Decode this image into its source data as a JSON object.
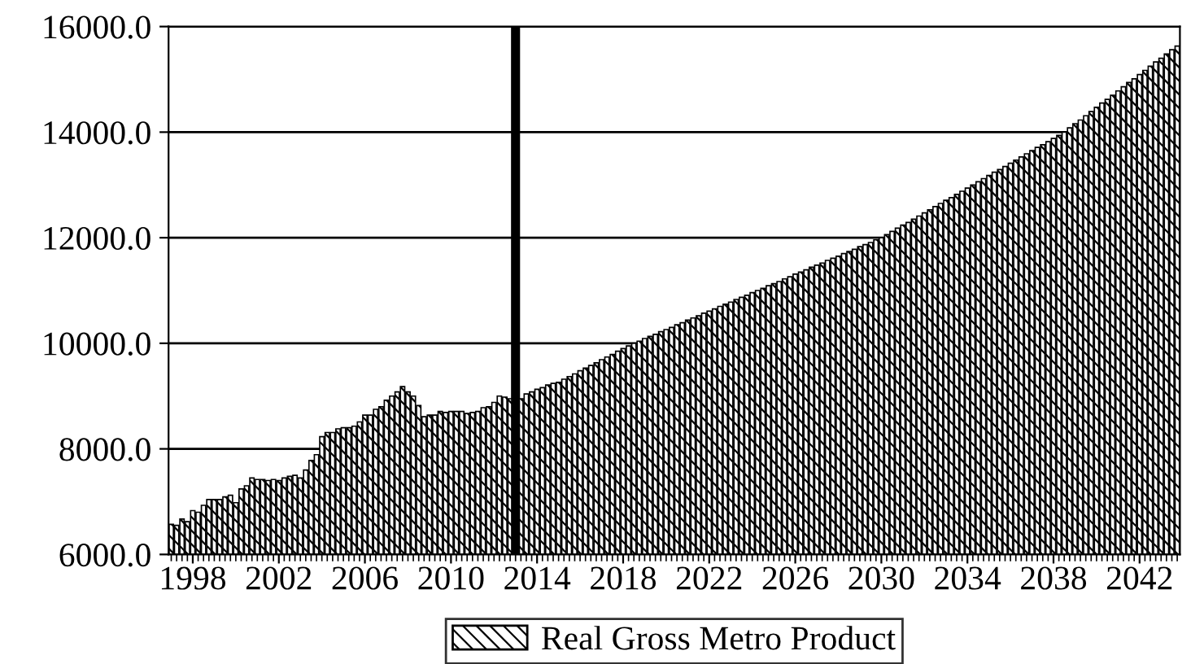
{
  "chart_data": {
    "type": "bar",
    "x": [
      1997,
      1997.25,
      1997.5,
      1997.75,
      1998,
      1998.25,
      1998.5,
      1998.75,
      1999,
      1999.25,
      1999.5,
      1999.75,
      2000,
      2000.25,
      2000.5,
      2000.75,
      2001,
      2001.25,
      2001.5,
      2001.75,
      2002,
      2002.25,
      2002.5,
      2002.75,
      2003,
      2003.25,
      2003.5,
      2003.75,
      2004,
      2004.25,
      2004.5,
      2004.75,
      2005,
      2005.25,
      2005.5,
      2005.75,
      2006,
      2006.25,
      2006.5,
      2006.75,
      2007,
      2007.25,
      2007.5,
      2007.75,
      2008,
      2008.25,
      2008.5,
      2008.75,
      2009,
      2009.25,
      2009.5,
      2009.75,
      2010,
      2010.25,
      2010.5,
      2010.75,
      2011,
      2011.25,
      2011.5,
      2011.75,
      2012,
      2012.25,
      2012.5,
      2012.75,
      2013,
      2013.25,
      2013.5,
      2013.75,
      2014,
      2014.25,
      2014.5,
      2014.75,
      2015,
      2015.25,
      2015.5,
      2015.75,
      2016,
      2016.25,
      2016.5,
      2016.75,
      2017,
      2017.25,
      2017.5,
      2017.75,
      2018,
      2018.25,
      2018.5,
      2018.75,
      2019,
      2019.25,
      2019.5,
      2019.75,
      2020,
      2020.25,
      2020.5,
      2020.75,
      2021,
      2021.25,
      2021.5,
      2021.75,
      2022,
      2022.25,
      2022.5,
      2022.75,
      2023,
      2023.25,
      2023.5,
      2023.75,
      2024,
      2024.25,
      2024.5,
      2024.75,
      2025,
      2025.25,
      2025.5,
      2025.75,
      2026,
      2026.25,
      2026.5,
      2026.75,
      2027,
      2027.25,
      2027.5,
      2027.75,
      2028,
      2028.25,
      2028.5,
      2028.75,
      2029,
      2029.25,
      2029.5,
      2029.75,
      2030,
      2030.25,
      2030.5,
      2030.75,
      2031,
      2031.25,
      2031.5,
      2031.75,
      2032,
      2032.25,
      2032.5,
      2032.75,
      2033,
      2033.25,
      2033.5,
      2033.75,
      2034,
      2034.25,
      2034.5,
      2034.75,
      2035,
      2035.25,
      2035.5,
      2035.75,
      2036,
      2036.25,
      2036.5,
      2036.75,
      2037,
      2037.25,
      2037.5,
      2037.75,
      2038,
      2038.25,
      2038.5,
      2038.75,
      2039,
      2039.25,
      2039.5,
      2039.75,
      2040,
      2040.25,
      2040.5,
      2040.75,
      2041,
      2041.25,
      2041.5,
      2041.75,
      2042,
      2042.25,
      2042.5,
      2042.75,
      2043,
      2043.25,
      2043.5,
      2043.75
    ],
    "series": [
      {
        "name": "Real Gross Metro Product",
        "color": "#000000",
        "values": [
          6570,
          6550,
          6670,
          6620,
          6830,
          6800,
          6930,
          7040,
          7040,
          7040,
          7090,
          7120,
          6980,
          7240,
          7300,
          7450,
          7420,
          7420,
          7400,
          7420,
          7400,
          7450,
          7480,
          7500,
          7450,
          7600,
          7780,
          7890,
          8230,
          8310,
          8310,
          8380,
          8400,
          8400,
          8430,
          8510,
          8640,
          8640,
          8750,
          8800,
          8920,
          9000,
          9080,
          9180,
          9080,
          9000,
          8820,
          8610,
          8640,
          8640,
          8710,
          8690,
          8710,
          8710,
          8710,
          8670,
          8690,
          8710,
          8780,
          8800,
          8880,
          9000,
          8980,
          8950,
          null,
          8950,
          9040,
          9080,
          9130,
          9160,
          9210,
          9240,
          9260,
          9320,
          9370,
          9420,
          9480,
          9530,
          9580,
          9630,
          9690,
          9740,
          9790,
          9850,
          9900,
          9950,
          10000,
          10040,
          10090,
          10130,
          10170,
          10220,
          10260,
          10300,
          10350,
          10390,
          10440,
          10480,
          10520,
          10570,
          10610,
          10650,
          10700,
          10740,
          10780,
          10830,
          10870,
          10910,
          10960,
          11000,
          11040,
          11090,
          11130,
          11170,
          11220,
          11260,
          11310,
          11350,
          11390,
          11440,
          11480,
          11520,
          11570,
          11610,
          11650,
          11700,
          11740,
          11780,
          11830,
          11870,
          11910,
          11960,
          12000,
          12060,
          12120,
          12180,
          12240,
          12290,
          12350,
          12410,
          12470,
          12530,
          12590,
          12650,
          12710,
          12760,
          12820,
          12880,
          12940,
          13000,
          13060,
          13120,
          13180,
          13240,
          13290,
          13350,
          13410,
          13470,
          13530,
          13590,
          13650,
          13710,
          13760,
          13820,
          13880,
          13940,
          14000,
          14080,
          14160,
          14230,
          14310,
          14390,
          14470,
          14550,
          14620,
          14700,
          14780,
          14860,
          14940,
          15010,
          15090,
          15170,
          15250,
          15330,
          15400,
          15480,
          15560,
          15630
        ]
      }
    ],
    "xlim": [
      1996.875,
      2043.875
    ],
    "xticks": [
      1998,
      2002,
      2006,
      2010,
      2014,
      2018,
      2022,
      2026,
      2030,
      2034,
      2038,
      2042
    ],
    "ylim": [
      6000,
      16000
    ],
    "yticks": [
      {
        "value": 6000,
        "label": "6000.0"
      },
      {
        "value": 8000,
        "label": "8000.0"
      },
      {
        "value": 10000,
        "label": "10000.0"
      },
      {
        "value": 12000,
        "label": "12000.0"
      },
      {
        "value": 14000,
        "label": "14000.0"
      },
      {
        "value": 16000,
        "label": "16000.0"
      }
    ],
    "ref_lines": [
      {
        "axis": "x",
        "value": 2013,
        "color": "#000000"
      }
    ],
    "grid": "y",
    "legend": "bottom"
  }
}
